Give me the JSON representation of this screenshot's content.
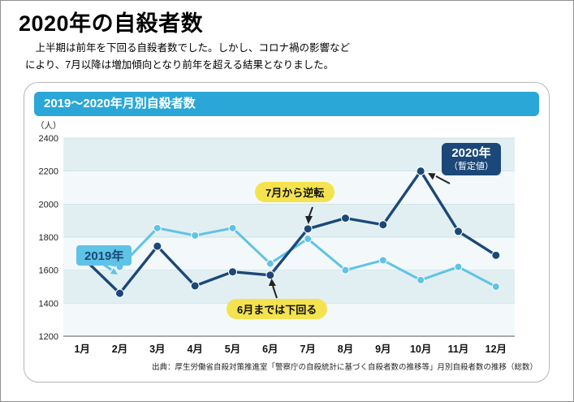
{
  "page": {
    "title": "2020年の自殺者数",
    "intro_line1": "　上半期は前年を下回る自殺者数でした。しかし、コロナ禍の影響など",
    "intro_line2": "により、7月以降は増加傾向となり前年を超える結果となりました。"
  },
  "card": {
    "banner_title": "2019〜2020年月別自殺者数",
    "y_unit": "（人）",
    "source": "出典：厚生労働省自殺対策推進室「警察庁の自殺統計に基づく自殺者数の推移等」月別自殺者数の推移（総数）"
  },
  "annotations": {
    "label_2019": "2019年",
    "label_2020_line1": "2020年",
    "label_2020_line2": "（暫定値）",
    "reversal": "7月から逆転",
    "below": "6月までは下回る"
  },
  "colors": {
    "banner": "#2aa7d7",
    "series_2019": "#5fc3e6",
    "series_2020": "#1b4878",
    "annotation_yellow": "#f4e34f",
    "band_a": "#e2eff2",
    "band_b": "#f3f9fa",
    "gridline": "#c3dde1",
    "axis": "#7a7a7a"
  },
  "chart_data": {
    "type": "line",
    "title": "2019〜2020年月別自殺者数",
    "ylabel": "（人）",
    "xlabel": "",
    "categories": [
      "1月",
      "2月",
      "3月",
      "4月",
      "5月",
      "6月",
      "7月",
      "8月",
      "9月",
      "10月",
      "11月",
      "12月"
    ],
    "series": [
      {
        "name": "2019年",
        "color": "#5fc3e6",
        "values": [
          1680,
          1620,
          1855,
          1810,
          1855,
          1640,
          1790,
          1600,
          1660,
          1540,
          1620,
          1500
        ]
      },
      {
        "name": "2020年（暫定値）",
        "color": "#1b4878",
        "values": [
          1680,
          1460,
          1745,
          1505,
          1590,
          1570,
          1850,
          1915,
          1875,
          2200,
          1835,
          1690
        ]
      }
    ],
    "ylim": [
      1200,
      2400
    ],
    "ytick_step": 200,
    "grid": "horizontal",
    "legend_position": "inline-labels"
  }
}
